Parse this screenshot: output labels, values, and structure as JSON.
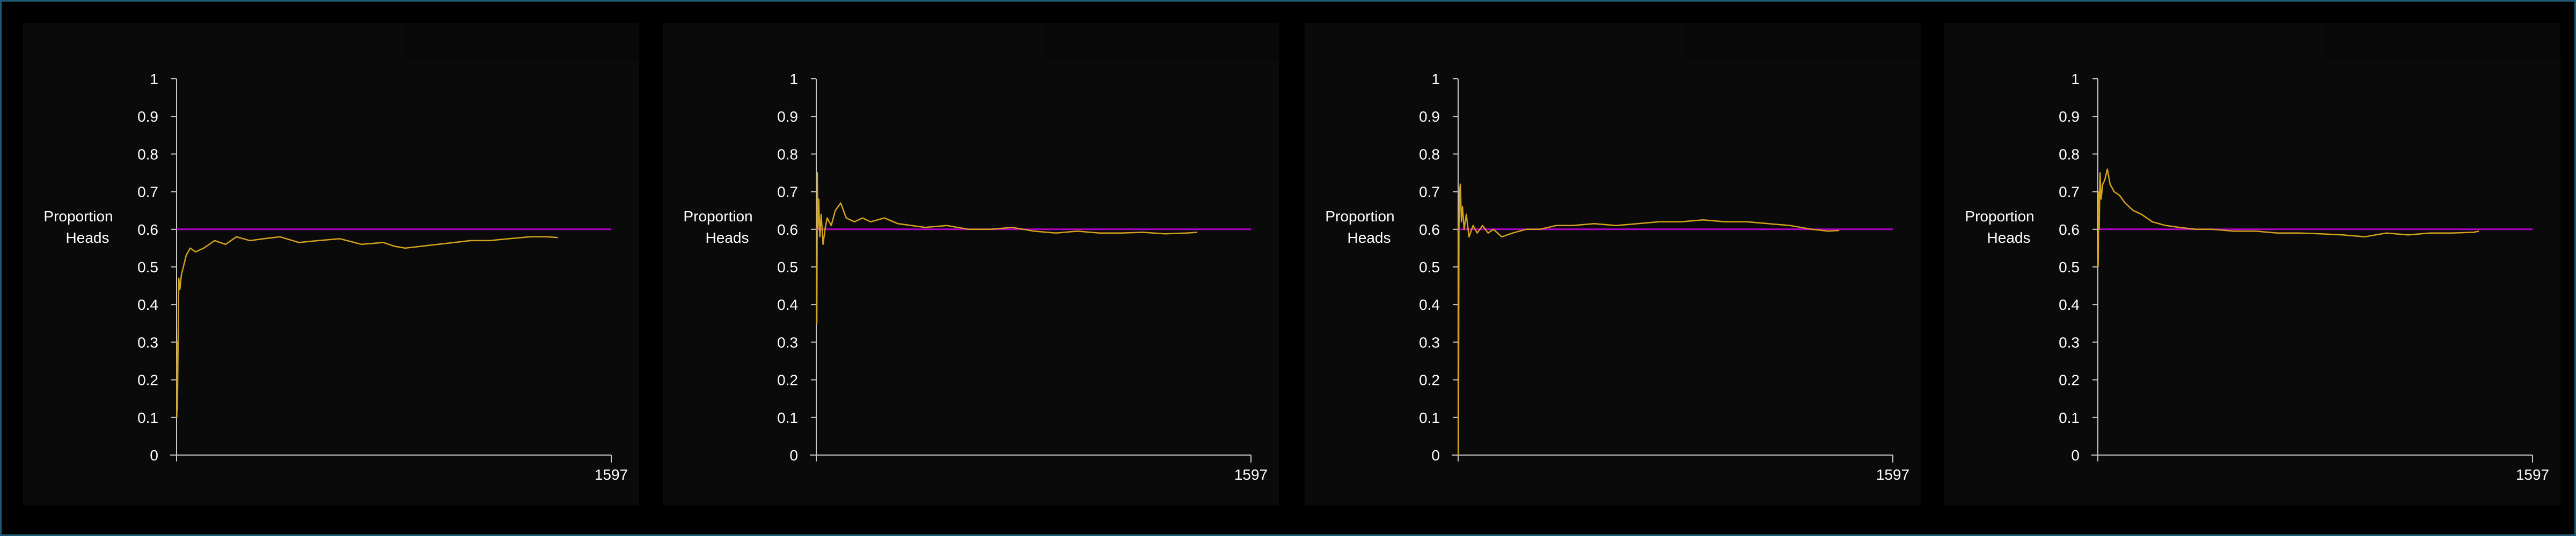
{
  "colors": {
    "background": "#000000",
    "panel": "#0a0a0a",
    "axis": "#c8c8c8",
    "series": "#d4a31c",
    "reference": "#b000c8",
    "border": "#1e5a74",
    "text": "#ffffff"
  },
  "chart_data": [
    {
      "type": "line",
      "ylabel_line1": "Proportion",
      "ylabel_line2": "Heads",
      "xlim": [
        0,
        1597
      ],
      "ylim": [
        0,
        1
      ],
      "xtick_labels": [
        "1597"
      ],
      "ytick_labels": [
        "0",
        "0.1",
        "0.2",
        "0.3",
        "0.4",
        "0.5",
        "0.6",
        "0.7",
        "0.8",
        "0.9",
        "1"
      ],
      "reference_value": 0.6,
      "series": [
        {
          "x": [
            1,
            2,
            3,
            5,
            8,
            12,
            18,
            25,
            35,
            50,
            70,
            100,
            140,
            180,
            220,
            270,
            320,
            380,
            450,
            520,
            600,
            680,
            760,
            800,
            840,
            900,
            960,
            1020,
            1080,
            1150,
            1220,
            1300,
            1360,
            1400
          ],
          "y": [
            0.1,
            0.3,
            0.12,
            0.25,
            0.47,
            0.44,
            0.48,
            0.5,
            0.53,
            0.55,
            0.54,
            0.55,
            0.57,
            0.56,
            0.58,
            0.57,
            0.575,
            0.58,
            0.565,
            0.57,
            0.575,
            0.56,
            0.565,
            0.555,
            0.55,
            0.555,
            0.56,
            0.565,
            0.57,
            0.57,
            0.575,
            0.58,
            0.58,
            0.578
          ]
        }
      ]
    },
    {
      "type": "line",
      "ylabel_line1": "Proportion",
      "ylabel_line2": "Heads",
      "xlim": [
        0,
        1597
      ],
      "ylim": [
        0,
        1
      ],
      "xtick_labels": [
        "1597"
      ],
      "ytick_labels": [
        "0",
        "0.1",
        "0.2",
        "0.3",
        "0.4",
        "0.5",
        "0.6",
        "0.7",
        "0.8",
        "0.9",
        "1"
      ],
      "reference_value": 0.6,
      "series": [
        {
          "x": [
            1,
            2,
            4,
            6,
            9,
            13,
            18,
            25,
            32,
            40,
            55,
            70,
            90,
            110,
            140,
            170,
            200,
            250,
            300,
            350,
            400,
            480,
            560,
            640,
            720,
            800,
            880,
            960,
            1040,
            1120,
            1200,
            1280,
            1360,
            1400
          ],
          "y": [
            0.5,
            0.35,
            0.75,
            0.6,
            0.68,
            0.58,
            0.64,
            0.56,
            0.6,
            0.63,
            0.61,
            0.65,
            0.67,
            0.63,
            0.62,
            0.63,
            0.62,
            0.63,
            0.615,
            0.61,
            0.605,
            0.61,
            0.6,
            0.6,
            0.605,
            0.595,
            0.59,
            0.595,
            0.59,
            0.59,
            0.592,
            0.588,
            0.59,
            0.592
          ]
        }
      ]
    },
    {
      "type": "line",
      "ylabel_line1": "Proportion",
      "ylabel_line2": "Heads",
      "xlim": [
        0,
        1597
      ],
      "ylim": [
        0,
        1
      ],
      "xtick_labels": [
        "1597"
      ],
      "ytick_labels": [
        "0",
        "0.1",
        "0.2",
        "0.3",
        "0.4",
        "0.5",
        "0.6",
        "0.7",
        "0.8",
        "0.9",
        "1"
      ],
      "reference_value": 0.6,
      "series": [
        {
          "x": [
            1,
            2,
            3,
            5,
            8,
            12,
            16,
            22,
            30,
            40,
            55,
            70,
            90,
            110,
            130,
            160,
            200,
            250,
            300,
            360,
            420,
            500,
            580,
            660,
            740,
            820,
            900,
            980,
            1060,
            1140,
            1220,
            1300,
            1360,
            1400
          ],
          "y": [
            0.0,
            0.3,
            0.6,
            0.7,
            0.72,
            0.62,
            0.66,
            0.6,
            0.64,
            0.58,
            0.61,
            0.59,
            0.61,
            0.59,
            0.6,
            0.58,
            0.59,
            0.6,
            0.6,
            0.61,
            0.61,
            0.615,
            0.61,
            0.615,
            0.62,
            0.62,
            0.625,
            0.62,
            0.62,
            0.615,
            0.61,
            0.6,
            0.595,
            0.597
          ]
        }
      ]
    },
    {
      "type": "line",
      "ylabel_line1": "Proportion",
      "ylabel_line2": "Heads",
      "xlim": [
        0,
        1597
      ],
      "ylim": [
        0,
        1
      ],
      "xtick_labels": [
        "1597"
      ],
      "ytick_labels": [
        "0",
        "0.1",
        "0.2",
        "0.3",
        "0.4",
        "0.5",
        "0.6",
        "0.7",
        "0.8",
        "0.9",
        "1"
      ],
      "reference_value": 0.6,
      "series": [
        {
          "x": [
            1,
            2,
            3,
            5,
            8,
            12,
            18,
            25,
            35,
            45,
            60,
            80,
            100,
            130,
            160,
            200,
            250,
            300,
            360,
            420,
            500,
            580,
            660,
            740,
            820,
            900,
            980,
            1060,
            1140,
            1220,
            1300,
            1380,
            1400
          ],
          "y": [
            0.5,
            0.55,
            0.7,
            0.6,
            0.75,
            0.68,
            0.72,
            0.73,
            0.76,
            0.72,
            0.7,
            0.69,
            0.67,
            0.65,
            0.64,
            0.62,
            0.61,
            0.605,
            0.6,
            0.6,
            0.595,
            0.595,
            0.59,
            0.59,
            0.588,
            0.585,
            0.58,
            0.59,
            0.585,
            0.59,
            0.59,
            0.592,
            0.595
          ]
        }
      ]
    }
  ]
}
